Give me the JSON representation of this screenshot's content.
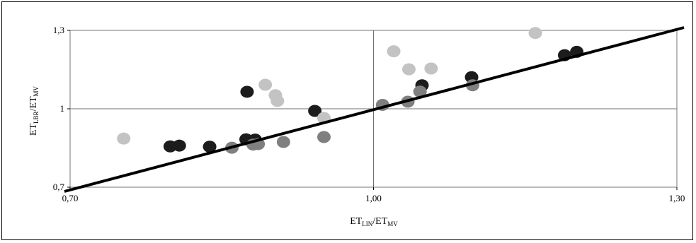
{
  "chart_data": {
    "type": "scatter",
    "xlabel": {
      "main1": "ET",
      "sub1": "LIN",
      "main2": "/ET",
      "sub2": "MV"
    },
    "ylabel": {
      "main1": "ET",
      "sub1": "LBR",
      "main2": "/ET",
      "sub2": "MV"
    },
    "xlim": [
      0.7,
      1.3
    ],
    "ylim": [
      0.7,
      1.3
    ],
    "x_ticks": [
      {
        "value": 0.7,
        "label": "0,70"
      },
      {
        "value": 1.0,
        "label": "1,00"
      },
      {
        "value": 1.3,
        "label": "1,30"
      }
    ],
    "y_ticks": [
      {
        "value": 0.7,
        "label": "0,7"
      },
      {
        "value": 1.0,
        "label": "1"
      },
      {
        "value": 1.3,
        "label": "1,3"
      }
    ],
    "grid": "crosshair at x=1,00 and y=1",
    "legend": "none",
    "reference_line": {
      "type": "1:1",
      "from": [
        0.7,
        0.7
      ],
      "to": [
        1.3,
        1.3
      ],
      "color": "#000000"
    },
    "series": [
      {
        "color": "#1c1c1c",
        "points": [
          [
            0.799,
            0.856
          ],
          [
            0.808,
            0.859
          ],
          [
            0.838,
            0.855
          ],
          [
            0.874,
            0.883
          ],
          [
            0.883,
            0.882
          ],
          [
            0.875,
            1.065
          ],
          [
            0.942,
            0.992
          ],
          [
            1.048,
            1.09
          ],
          [
            1.097,
            1.121
          ],
          [
            1.189,
            1.205
          ],
          [
            1.201,
            1.218
          ]
        ]
      },
      {
        "color": "#7f7f7f",
        "points": [
          [
            0.86,
            0.851
          ],
          [
            0.881,
            0.863
          ],
          [
            0.886,
            0.865
          ],
          [
            0.911,
            0.873
          ],
          [
            0.951,
            0.892
          ],
          [
            1.009,
            1.015
          ],
          [
            1.034,
            1.027
          ],
          [
            1.046,
            1.066
          ],
          [
            1.098,
            1.09
          ]
        ]
      },
      {
        "color": "#c3c3c3",
        "points": [
          [
            0.753,
            0.886
          ],
          [
            0.893,
            1.092
          ],
          [
            0.903,
            1.052
          ],
          [
            0.905,
            1.03
          ],
          [
            0.951,
            0.965
          ],
          [
            1.02,
            1.22
          ],
          [
            1.035,
            1.151
          ],
          [
            1.057,
            1.154
          ],
          [
            1.16,
            1.29
          ]
        ]
      }
    ]
  }
}
